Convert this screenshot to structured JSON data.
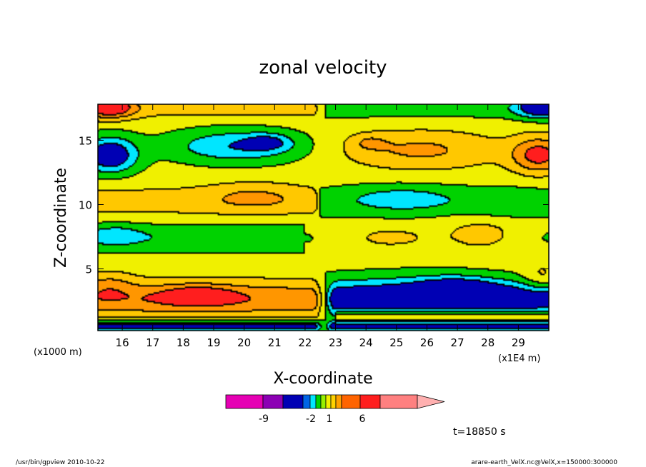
{
  "chart_data": {
    "type": "heatmap",
    "title": "zonal velocity",
    "xlabel": "X-coordinate",
    "ylabel": "Z-coordinate",
    "x_unit_left": "(x1000 m)",
    "x_unit_right": "(x1E4 m)",
    "x_range": [
      15.2,
      30.0
    ],
    "y_range": [
      0.2,
      17.8
    ],
    "x_ticks": [
      16,
      17,
      18,
      19,
      20,
      21,
      22,
      23,
      24,
      25,
      26,
      27,
      28,
      29
    ],
    "y_ticks": [
      5,
      10,
      15
    ],
    "time_label": "t=18850 s",
    "colorbar": {
      "colors": [
        "#e600b4",
        "#8c00b4",
        "#0000b4",
        "#0064e6",
        "#00e6ff",
        "#00d200",
        "#96f000",
        "#f0f000",
        "#ffd200",
        "#ffa000",
        "#ff6400",
        "#ff1e1e",
        "#ff8080",
        "#ffb0b0"
      ],
      "tick_labels": [
        "-9",
        "-2",
        "1",
        "6"
      ]
    },
    "levels": [
      -2,
      -1,
      0,
      1,
      2,
      3
    ],
    "level_colors": [
      "#0000b4",
      "#00e6ff",
      "#00d200",
      "#f0f000",
      "#ffc800",
      "#ff9600",
      "#ff1e1e"
    ]
  },
  "footer": {
    "left": "/usr/bin/gpview   2010-10-22",
    "right": "arare-earth_VelX.nc@VelX,x=150000:300000"
  }
}
